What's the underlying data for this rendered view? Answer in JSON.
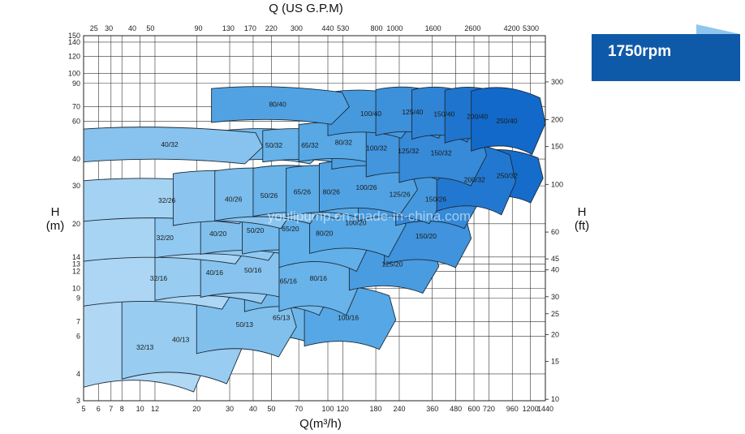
{
  "badge": {
    "label": "1750rpm",
    "color": "#0f5aa8"
  },
  "watermark": "youlipump.en.made-in-china.com",
  "chart_data": {
    "type": "area",
    "title": "",
    "xlabel": "Q(m³/h)",
    "x2label": "Q (US G.P.M)",
    "ylabel": "H\n(m)",
    "y2label": "H\n(ft)",
    "x_scale": "log",
    "y_scale": "log",
    "grid": true,
    "xlim": [
      5,
      1440
    ],
    "ylim": [
      3,
      150
    ],
    "x_ticks": [
      5,
      6,
      7,
      8,
      10,
      12,
      20,
      30,
      40,
      50,
      70,
      100,
      120,
      180,
      240,
      360,
      480,
      600,
      720,
      960,
      1200,
      1440
    ],
    "x_tick_labels": [
      "5",
      "6",
      "7",
      "8",
      "10",
      "12",
      "20",
      "30",
      "40",
      "50",
      "70",
      "100",
      "120",
      "180",
      "240",
      "360",
      "480",
      "600",
      "720",
      "960",
      "1200",
      "1440"
    ],
    "x2_ticks": [
      25,
      30,
      40,
      50,
      90,
      130,
      170,
      220,
      300,
      440,
      530,
      800,
      1000,
      1600,
      2600,
      4200,
      5300
    ],
    "y_ticks": [
      3,
      4,
      6,
      7,
      9,
      10,
      12,
      13,
      14,
      20,
      30,
      40,
      60,
      70,
      90,
      100,
      120,
      140,
      150
    ],
    "y2_ticks": [
      10,
      15,
      20,
      25,
      30,
      40,
      45,
      60,
      100,
      150,
      200,
      300
    ],
    "colors": {
      "light": "#c5e3f7",
      "mid": "#5eaee8",
      "dark": "#0b63c6"
    },
    "series": [
      {
        "name": "32/13",
        "q": [
          5,
          24
        ],
        "h": [
          3.3,
          9.0
        ],
        "shade": 0.1
      },
      {
        "name": "40/13",
        "q": [
          8,
          36
        ],
        "h": [
          3.6,
          9.7
        ],
        "shade": 0.22
      },
      {
        "name": "50/13",
        "q": [
          20,
          68
        ],
        "h": [
          4.8,
          9.8
        ],
        "shade": 0.33
      },
      {
        "name": "65/13",
        "q": [
          35,
          95
        ],
        "h": [
          5.6,
          9.6
        ],
        "shade": 0.42
      },
      {
        "name": "100/16",
        "q": [
          75,
          230
        ],
        "h": [
          5.2,
          10.5
        ],
        "shade": 0.55
      },
      {
        "name": "32/16",
        "q": [
          5,
          34
        ],
        "h": [
          8.0,
          15.8
        ],
        "shade": 0.12
      },
      {
        "name": "40/16",
        "q": [
          12,
          55
        ],
        "h": [
          8.5,
          16.8
        ],
        "shade": 0.22
      },
      {
        "name": "50/16",
        "q": [
          21,
          80
        ],
        "h": [
          8.8,
          17.0
        ],
        "shade": 0.3
      },
      {
        "name": "65/16",
        "q": [
          36,
          110
        ],
        "h": [
          7.5,
          16.0
        ],
        "shade": 0.4
      },
      {
        "name": "80/16",
        "q": [
          55,
          150
        ],
        "h": [
          7.5,
          17.0
        ],
        "shade": 0.45
      },
      {
        "name": "32/20",
        "q": [
          5,
          40
        ],
        "h": [
          13.0,
          23.0
        ],
        "shade": 0.14
      },
      {
        "name": "40/20",
        "q": [
          12,
          60
        ],
        "h": [
          13.5,
          24.0
        ],
        "shade": 0.25
      },
      {
        "name": "50/20",
        "q": [
          21,
          85
        ],
        "h": [
          14.0,
          25.0
        ],
        "shade": 0.33
      },
      {
        "name": "65/20",
        "q": [
          35,
          120
        ],
        "h": [
          14.0,
          26.0
        ],
        "shade": 0.4
      },
      {
        "name": "80/20",
        "q": [
          55,
          175
        ],
        "h": [
          12.0,
          28.0
        ],
        "shade": 0.48
      },
      {
        "name": "100/20",
        "q": [
          80,
          260
        ],
        "h": [
          14.0,
          30.0
        ],
        "shade": 0.55
      },
      {
        "name": "125/20",
        "q": [
          130,
          390
        ],
        "h": [
          9.5,
          18.0
        ],
        "shade": 0.62
      },
      {
        "name": "150/20",
        "q": [
          200,
          580
        ],
        "h": [
          12.5,
          25.0
        ],
        "shade": 0.68
      },
      {
        "name": "32/26",
        "q": [
          5,
          42
        ],
        "h": [
          20.0,
          33.0
        ],
        "shade": 0.16
      },
      {
        "name": "40/26",
        "q": [
          15,
          70
        ],
        "h": [
          19.0,
          36.0
        ],
        "shade": 0.28
      },
      {
        "name": "50/26",
        "q": [
          25,
          100
        ],
        "h": [
          20.0,
          37.0
        ],
        "shade": 0.36
      },
      {
        "name": "65/26",
        "q": [
          40,
          140
        ],
        "h": [
          21.0,
          38.0
        ],
        "shade": 0.44
      },
      {
        "name": "80/26",
        "q": [
          60,
          190
        ],
        "h": [
          21.0,
          38.0
        ],
        "shade": 0.52
      },
      {
        "name": "100/26",
        "q": [
          90,
          300
        ],
        "h": [
          22.0,
          40.0
        ],
        "shade": 0.58
      },
      {
        "name": "125/26",
        "q": [
          145,
          420
        ],
        "h": [
          20.0,
          38.0
        ],
        "shade": 0.65
      },
      {
        "name": "150/26",
        "q": [
          230,
          640
        ],
        "h": [
          19.0,
          36.0
        ],
        "shade": 0.74
      },
      {
        "name": "40/32",
        "q": [
          5,
          45
        ],
        "h": [
          38.0,
          57.0
        ],
        "shade": 0.3
      },
      {
        "name": "50/32",
        "q": [
          28,
          100
        ],
        "h": [
          38.0,
          56.0
        ],
        "shade": 0.4
      },
      {
        "name": "65/32",
        "q": [
          45,
          150
        ],
        "h": [
          38.0,
          56.0
        ],
        "shade": 0.46
      },
      {
        "name": "80/32",
        "q": [
          70,
          220
        ],
        "h": [
          38.0,
          60.0
        ],
        "shade": 0.54
      },
      {
        "name": "100/32",
        "q": [
          105,
          330
        ],
        "h": [
          35.0,
          58.0
        ],
        "shade": 0.6
      },
      {
        "name": "125/32",
        "q": [
          160,
          470
        ],
        "h": [
          32.0,
          60.0
        ],
        "shade": 0.66
      },
      {
        "name": "150/32",
        "q": [
          240,
          700
        ],
        "h": [
          30.0,
          62.0
        ],
        "shade": 0.74
      },
      {
        "name": "200/32",
        "q": [
          380,
          1000
        ],
        "h": [
          22.0,
          48.0
        ],
        "shade": 0.86
      },
      {
        "name": "250/32",
        "q": [
          600,
          1400
        ],
        "h": [
          25.0,
          45.0
        ],
        "shade": 0.94
      },
      {
        "name": "80/40",
        "q": [
          24,
          130
        ],
        "h": [
          58.0,
          88.0
        ],
        "shade": 0.58
      },
      {
        "name": "100/40",
        "q": [
          100,
          300
        ],
        "h": [
          50.0,
          85.0
        ],
        "shade": 0.64
      },
      {
        "name": "125/40",
        "q": [
          180,
          460
        ],
        "h": [
          50.0,
          88.0
        ],
        "shade": 0.7
      },
      {
        "name": "150/40",
        "q": [
          280,
          640
        ],
        "h": [
          48.0,
          88.0
        ],
        "shade": 0.78
      },
      {
        "name": "200/40",
        "q": [
          420,
          960
        ],
        "h": [
          46.0,
          88.0
        ],
        "shade": 0.88
      },
      {
        "name": "250/40",
        "q": [
          580,
          1440
        ],
        "h": [
          42.0,
          88.0
        ],
        "shade": 0.96
      }
    ]
  }
}
